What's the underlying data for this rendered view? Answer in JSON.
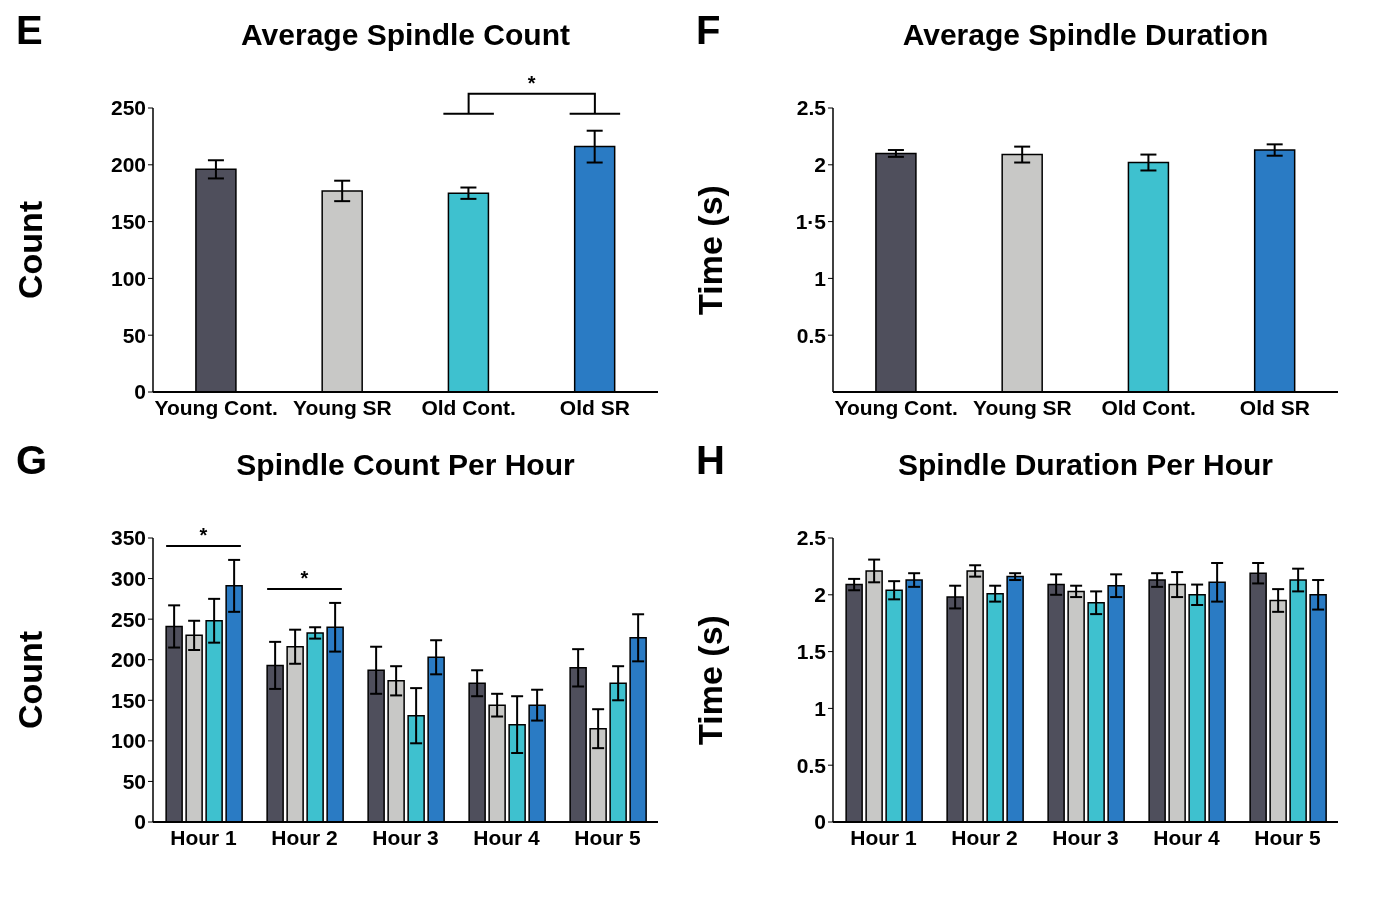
{
  "chart_data": [
    {
      "type": "bar",
      "title": "Average Spindle Count",
      "ylabel": "Count",
      "annotations": [
        "E",
        "*"
      ],
      "categories": [
        "Young Cont.",
        "Young SR",
        "Old Cont.",
        "Old SR"
      ],
      "values": [
        196,
        177,
        175,
        216
      ],
      "errors": [
        8,
        9,
        5,
        14
      ],
      "colors": [
        "#4f4f5c",
        "#c8c8c6",
        "#3ec1cf",
        "#2a7bc4"
      ],
      "ylim": [
        0,
        250
      ],
      "yticks": [
        0,
        50,
        100,
        150,
        200,
        250
      ],
      "grid": false,
      "legend": false
    },
    {
      "type": "bar",
      "title": "Average Spindle Duration",
      "ylabel": "Time (s)",
      "annotations": [
        "F"
      ],
      "categories": [
        "Young Cont.",
        "Young SR",
        "Old Cont.",
        "Old SR"
      ],
      "values": [
        2.1,
        2.09,
        2.02,
        2.13
      ],
      "errors": [
        0.03,
        0.07,
        0.07,
        0.05
      ],
      "colors": [
        "#4f4f5c",
        "#c8c8c6",
        "#3ec1cf",
        "#2a7bc4"
      ],
      "ylim": [
        0,
        2.5
      ],
      "yticks": [
        0.5,
        1,
        {
          "value": 1.5,
          "label": "1·5"
        },
        2,
        2.5
      ],
      "grid": false,
      "legend": false
    },
    {
      "type": "bar",
      "title": "Spindle Count Per Hour",
      "ylabel": "Count",
      "annotations": [
        "G",
        "*",
        "*"
      ],
      "categories": [
        "Hour 1",
        "Hour 2",
        "Hour 3",
        "Hour 4",
        "Hour 5"
      ],
      "series": [
        {
          "color": "#4f4f5c",
          "values": [
            241,
            193,
            187,
            171,
            190
          ],
          "errors": [
            26,
            29,
            29,
            16,
            23
          ]
        },
        {
          "color": "#c8c8c6",
          "values": [
            230,
            216,
            174,
            144,
            115
          ],
          "errors": [
            18,
            21,
            18,
            14,
            24
          ]
        },
        {
          "color": "#3ec1cf",
          "values": [
            248,
            233,
            131,
            120,
            171
          ],
          "errors": [
            27,
            7,
            34,
            35,
            21
          ]
        },
        {
          "color": "#2a7bc4",
          "values": [
            291,
            240,
            203,
            144,
            227
          ],
          "errors": [
            32,
            30,
            21,
            19,
            29
          ]
        }
      ],
      "ylim": [
        0,
        350
      ],
      "yticks": [
        0,
        50,
        100,
        150,
        200,
        250,
        300,
        350
      ],
      "grid": false,
      "legend": false
    },
    {
      "type": "bar",
      "title": "Spindle Duration Per Hour",
      "ylabel": "Time (s)",
      "annotations": [
        "H"
      ],
      "categories": [
        "Hour 1",
        "Hour 2",
        "Hour 3",
        "Hour 4",
        "Hour 5"
      ],
      "series": [
        {
          "color": "#4f4f5c",
          "values": [
            2.09,
            1.98,
            2.09,
            2.13,
            2.19
          ],
          "errors": [
            0.05,
            0.1,
            0.09,
            0.06,
            0.09
          ]
        },
        {
          "color": "#c8c8c6",
          "values": [
            2.21,
            2.21,
            2.03,
            2.09,
            1.95
          ],
          "errors": [
            0.1,
            0.05,
            0.05,
            0.11,
            0.1
          ]
        },
        {
          "color": "#3ec1cf",
          "values": [
            2.04,
            2.01,
            1.93,
            2.0,
            2.13
          ],
          "errors": [
            0.08,
            0.07,
            0.1,
            0.09,
            0.1
          ]
        },
        {
          "color": "#2a7bc4",
          "values": [
            2.13,
            2.16,
            2.08,
            2.11,
            2.0
          ],
          "errors": [
            0.06,
            0.03,
            0.1,
            0.17,
            0.13
          ]
        }
      ],
      "ylim": [
        0,
        2.5
      ],
      "yticks": [
        0,
        0.5,
        1,
        1.5,
        2,
        2.5
      ],
      "grid": false,
      "legend": false
    }
  ]
}
